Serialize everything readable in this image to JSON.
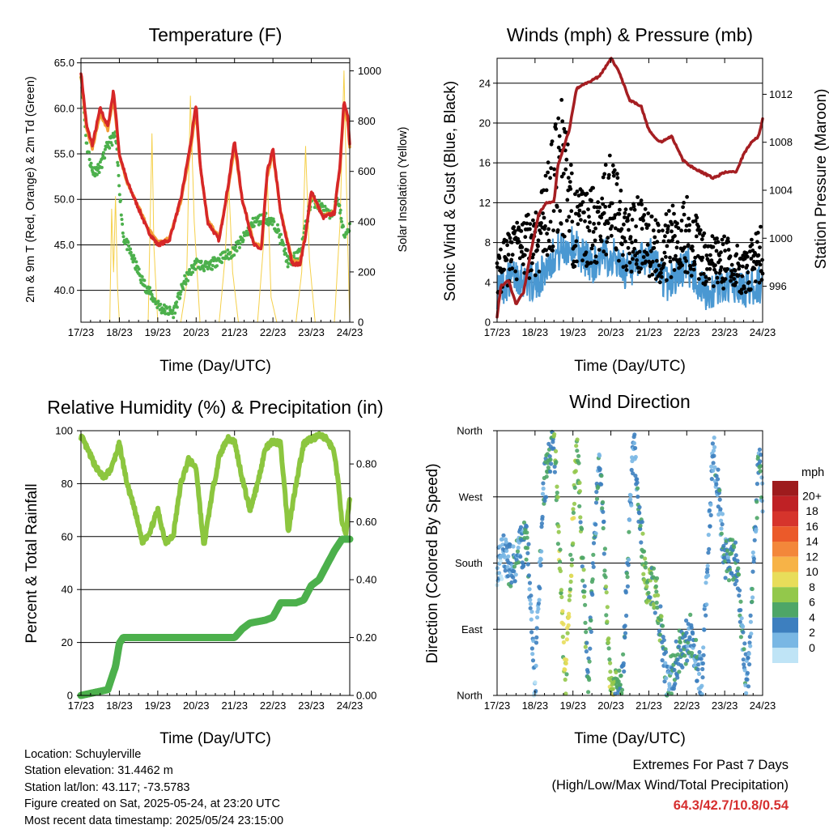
{
  "panels": {
    "temperature": {
      "title": "Temperature (F)",
      "ylabel_left": "2m & 9m T (Red, Orange) & 2m Td (Green)",
      "ylabel_right": "Solar Insolation (Yellow)",
      "xlabel": "Time (Day/UTC)"
    },
    "winds": {
      "title": "Winds (mph) & Pressure (mb)",
      "ylabel_left": "Sonic Wind & Gust (Blue, Black)",
      "ylabel_right": "Station Pressure (Maroon)",
      "xlabel": "Time (Day/UTC)"
    },
    "humidity": {
      "title": "Relative Humidity (%) & Precipitation (in)",
      "ylabel_left": "Percent & Total Rainfall",
      "xlabel": "Time (Day/UTC)"
    },
    "direction": {
      "title": "Wind Direction",
      "ylabel_left": "Direction (Colored By Speed)",
      "xlabel": "Time (Day/UTC)",
      "legend_title": "mph"
    }
  },
  "x_ticks": [
    "17/23",
    "18/23",
    "19/23",
    "20/23",
    "21/23",
    "22/23",
    "23/23",
    "24/23"
  ],
  "info": {
    "location": "Location: Schuylerville",
    "elevation": "Station elevation: 31.4462 m",
    "latlon": "Station lat/lon: 43.117; -73.5783",
    "created": "Figure created on Sat, 2025-05-24, at 23:20 UTC",
    "recent": "Most recent data timestamp: 2025/05/24 23:15:00"
  },
  "extremes": {
    "title": "Extremes For Past 7 Days",
    "subtitle": "(High/Low/Max Wind/Total Precipitation)",
    "value": "64.3/42.7/10.8/0.54"
  },
  "colors": {
    "temp_2m": "#d62728",
    "temp_9m": "#f39c34",
    "dewpoint": "#4cb04c",
    "insolation": "#f5d04a",
    "wind": "#4a98d2",
    "gust": "#000000",
    "pressure": "#a51e22",
    "rh": "#8cc63f",
    "precip": "#4cb04c"
  },
  "chart_data": [
    {
      "type": "line",
      "title": "Temperature (F)",
      "xlabel": "Time (Day/UTC)",
      "ylabel": "2m & 9m T (Red, Orange) & 2m Td (Green)",
      "y2label": "Solar Insolation (Yellow)",
      "x": [
        "17/23",
        "18/23",
        "19/23",
        "20/23",
        "21/23",
        "22/23",
        "23/23",
        "24/23"
      ],
      "ylim": [
        36.5,
        65.5
      ],
      "y2lim": [
        0,
        1050
      ],
      "yticks": [
        40.0,
        45.0,
        50.0,
        55.0,
        60.0,
        65.0
      ],
      "y2ticks": [
        0,
        200,
        400,
        600,
        800,
        1000
      ],
      "series": [
        {
          "name": "2m T",
          "axis": "left",
          "x": [
            0,
            0.15,
            0.3,
            0.5,
            0.7,
            0.85,
            1.0,
            1.2,
            1.5,
            1.75,
            2.0,
            2.3,
            2.6,
            2.85,
            3.0,
            3.1,
            3.3,
            3.6,
            3.85,
            4.0,
            4.2,
            4.5,
            4.7,
            4.85,
            5.0,
            5.2,
            5.5,
            5.7,
            5.85,
            6.0,
            6.3,
            6.6,
            6.75,
            6.85,
            6.95,
            7.0
          ],
          "y": [
            64,
            58,
            56,
            60,
            58,
            62,
            55,
            52,
            49,
            46.5,
            45,
            45.5,
            50,
            56,
            60.5,
            54,
            47.5,
            45.5,
            52,
            56.5,
            50,
            45,
            44.5,
            53,
            55.5,
            48.5,
            43,
            42.8,
            46,
            51,
            48,
            48.5,
            54,
            61,
            59,
            56
          ]
        },
        {
          "name": "9m T",
          "axis": "left",
          "x": [
            0,
            0.15,
            0.3,
            0.5,
            0.7,
            0.85,
            1.0,
            1.2,
            1.5,
            1.75,
            2.0,
            2.3,
            2.6,
            2.85,
            3.0,
            3.1,
            3.3,
            3.6,
            3.85,
            4.0,
            4.2,
            4.5,
            4.7,
            4.85,
            5.0,
            5.2,
            5.5,
            5.7,
            5.85,
            6.0,
            6.3,
            6.6,
            6.75,
            6.85,
            6.95,
            7.0
          ],
          "y": [
            63.6,
            57.6,
            55.6,
            59.4,
            57.6,
            61.3,
            54.8,
            51.8,
            49.2,
            46.8,
            45.3,
            45.7,
            49.7,
            55.4,
            59.8,
            53.8,
            47.8,
            45.8,
            51.6,
            55.8,
            50,
            45.3,
            44.8,
            52.5,
            55,
            48.7,
            43.3,
            43.1,
            46.1,
            50.6,
            48.2,
            48.7,
            53.6,
            60.2,
            58.4,
            55.6
          ]
        },
        {
          "name": "2m Td",
          "axis": "left",
          "x": [
            0,
            0.15,
            0.3,
            0.5,
            0.7,
            0.9,
            1.1,
            1.3,
            1.6,
            1.9,
            2.1,
            2.4,
            2.7,
            3.0,
            3.3,
            3.6,
            3.9,
            4.2,
            4.5,
            4.8,
            5.1,
            5.4,
            5.7,
            6.0,
            6.3,
            6.5,
            6.7,
            6.85,
            7.0
          ],
          "y": [
            64,
            56,
            53,
            53.5,
            56,
            57,
            46,
            44,
            41,
            39,
            38,
            37.5,
            41,
            43,
            42.5,
            43.5,
            44,
            45.5,
            47.5,
            48,
            47,
            43,
            44,
            50,
            49,
            48,
            50,
            46,
            47
          ]
        },
        {
          "name": "Solar Insolation",
          "axis": "right",
          "x": [
            0.75,
            0.8,
            0.85,
            0.9,
            0.95,
            1.0,
            1.05,
            1.1,
            1.2,
            1.35,
            1.5,
            1.6,
            1.75,
            1.85,
            1.9,
            2.0,
            2.2,
            2.4,
            2.6,
            2.75,
            2.85,
            2.95,
            3.1,
            3.3,
            3.6,
            3.75,
            3.85,
            3.95,
            4.1,
            4.3,
            4.6,
            4.75,
            4.85,
            4.95,
            5.1,
            5.3,
            5.6,
            5.75,
            5.85,
            5.95,
            6.1,
            6.3,
            6.6,
            6.75,
            6.85,
            6.95,
            7.0
          ],
          "y": [
            0,
            450,
            200,
            500,
            150,
            0,
            0,
            0,
            0,
            0,
            0,
            0,
            0,
            750,
            300,
            0,
            0,
            0,
            0,
            150,
            900,
            400,
            0,
            0,
            0,
            250,
            550,
            200,
            0,
            0,
            0,
            300,
            600,
            100,
            0,
            0,
            0,
            200,
            700,
            250,
            0,
            0,
            0,
            400,
            1000,
            300,
            0
          ]
        }
      ]
    },
    {
      "type": "scatter",
      "title": "Winds (mph) & Pressure (mb)",
      "xlabel": "Time (Day/UTC)",
      "ylabel": "Sonic Wind & Gust (Blue, Black)",
      "y2label": "Station Pressure (Maroon)",
      "x": [
        "17/23",
        "18/23",
        "19/23",
        "20/23",
        "21/23",
        "22/23",
        "23/23",
        "24/23"
      ],
      "ylim": [
        0,
        26.5
      ],
      "y2lim": [
        993.0,
        1015.0
      ],
      "yticks": [
        0,
        4,
        8,
        12,
        16,
        20,
        24
      ],
      "y2ticks": [
        996,
        1000,
        1004,
        1008,
        1012
      ],
      "series": [
        {
          "name": "Sonic Wind",
          "axis": "left",
          "x": [
            0,
            0.5,
            1.0,
            1.5,
            2.0,
            2.5,
            3.0,
            3.5,
            4.0,
            4.5,
            5.0,
            5.5,
            6.0,
            6.5,
            7.0
          ],
          "y": [
            2.5,
            4,
            3,
            6,
            7,
            5,
            6,
            4,
            6,
            3,
            5,
            2,
            3,
            2.5,
            3
          ]
        },
        {
          "name": "Gust",
          "axis": "left",
          "x": [
            0,
            0.5,
            1.0,
            1.3,
            1.7,
            2.0,
            2.3,
            2.6,
            3.0,
            3.4,
            3.8,
            4.2,
            4.6,
            5.0,
            5.5,
            6.0,
            6.5,
            7.0
          ],
          "y": [
            5,
            7,
            8,
            11,
            16,
            10,
            9,
            10,
            12,
            8,
            9,
            7,
            8,
            9,
            6,
            6,
            5,
            7
          ]
        },
        {
          "name": "Station Pressure",
          "axis": "right",
          "x": [
            0,
            0.1,
            0.3,
            0.5,
            0.7,
            0.9,
            1.1,
            1.3,
            1.5,
            1.6,
            1.9,
            2.1,
            2.4,
            2.7,
            3.0,
            3.2,
            3.5,
            3.8,
            4.0,
            4.3,
            4.6,
            4.9,
            5.1,
            5.4,
            5.7,
            6.0,
            6.3,
            6.5,
            6.7,
            6.9,
            7.0
          ],
          "y": [
            993.5,
            996,
            996.5,
            994.5,
            995.5,
            999,
            1002,
            1003,
            1003,
            1006,
            1009,
            1012.5,
            1013,
            1013.5,
            1015,
            1014,
            1011.5,
            1011,
            1009,
            1008,
            1008.5,
            1006.5,
            1006,
            1005.5,
            1005,
            1005.5,
            1005.5,
            1007,
            1008,
            1008.5,
            1010
          ]
        }
      ]
    },
    {
      "type": "line",
      "title": "Relative Humidity (%) & Precipitation (in)",
      "xlabel": "Time (Day/UTC)",
      "ylabel": "Percent & Total Rainfall",
      "x": [
        "17/23",
        "18/23",
        "19/23",
        "20/23",
        "21/23",
        "22/23",
        "23/23",
        "24/23"
      ],
      "ylim": [
        0,
        100
      ],
      "y2lim": [
        0,
        0.915
      ],
      "yticks": [
        0,
        20,
        40,
        60,
        80,
        100
      ],
      "y2ticks": [
        0.0,
        0.2,
        0.4,
        0.6,
        0.8
      ],
      "series": [
        {
          "name": "Relative Humidity",
          "axis": "left",
          "x": [
            0,
            0.2,
            0.4,
            0.6,
            0.8,
            1.0,
            1.2,
            1.4,
            1.6,
            1.8,
            2.0,
            2.2,
            2.4,
            2.6,
            2.8,
            3.0,
            3.2,
            3.4,
            3.6,
            3.8,
            4.0,
            4.2,
            4.4,
            4.6,
            4.8,
            5.0,
            5.2,
            5.4,
            5.6,
            5.8,
            6.0,
            6.2,
            6.4,
            6.6,
            6.7,
            6.8,
            6.9,
            7.0
          ],
          "y": [
            98,
            92,
            86,
            82,
            86,
            95,
            80,
            70,
            58,
            62,
            70,
            58,
            60,
            80,
            89,
            86,
            56,
            75,
            90,
            97,
            96,
            82,
            70,
            80,
            93,
            96,
            95,
            62,
            80,
            95,
            97,
            98,
            97,
            92,
            80,
            66,
            60,
            75
          ]
        },
        {
          "name": "Total Precipitation",
          "axis": "right",
          "x": [
            0,
            0.7,
            0.9,
            1.0,
            1.1,
            1.2,
            1.5,
            2.0,
            2.5,
            3.0,
            3.5,
            4.0,
            4.2,
            4.4,
            4.8,
            5.0,
            5.2,
            5.6,
            5.8,
            6.0,
            6.2,
            6.4,
            6.6,
            6.8,
            7.0
          ],
          "y": [
            0,
            0.02,
            0.1,
            0.18,
            0.2,
            0.2,
            0.2,
            0.2,
            0.2,
            0.2,
            0.2,
            0.2,
            0.23,
            0.25,
            0.26,
            0.27,
            0.32,
            0.32,
            0.33,
            0.38,
            0.4,
            0.45,
            0.5,
            0.54,
            0.54
          ]
        }
      ]
    },
    {
      "type": "scatter",
      "title": "Wind Direction",
      "xlabel": "Time (Day/UTC)",
      "ylabel": "Direction (Colored By Speed)",
      "x": [
        "17/23",
        "18/23",
        "19/23",
        "20/23",
        "21/23",
        "22/23",
        "23/23",
        "24/23"
      ],
      "ylim": [
        0,
        360
      ],
      "ytick_labels": [
        "North",
        "East",
        "South",
        "West",
        "North"
      ],
      "colorbar": {
        "title": "mph",
        "labels": [
          "20+",
          "18",
          "16",
          "14",
          "12",
          "10",
          "8",
          "6",
          "4",
          "2",
          "0"
        ],
        "colors": [
          "#9e1b1d",
          "#bf2125",
          "#d6342c",
          "#eb5a2a",
          "#f3873a",
          "#f7b347",
          "#e8dd5a",
          "#93c84b",
          "#4ea667",
          "#3d7fbf",
          "#79b7e4",
          "#bfe4f6"
        ]
      },
      "series": [
        {
          "name": "Direction",
          "x": [
            0,
            0.2,
            0.4,
            0.6,
            0.8,
            1.0,
            1.2,
            1.5,
            1.8,
            2.1,
            2.4,
            2.7,
            3.0,
            3.3,
            3.6,
            3.9,
            4.2,
            4.5,
            4.8,
            5.1,
            5.4,
            5.7,
            6.0,
            6.3,
            6.6,
            6.9,
            7.0
          ],
          "y": [
            180,
            190,
            170,
            200,
            210,
            0,
            270,
            360,
            10,
            350,
            20,
            340,
            0,
            10,
            350,
            160,
            140,
            10,
            60,
            80,
            20,
            340,
            190,
            180,
            10,
            320,
            280
          ],
          "speed": [
            2,
            3,
            4,
            3,
            5,
            2,
            4,
            6,
            9,
            7,
            5,
            4,
            8,
            5,
            3,
            7,
            6,
            4,
            5,
            4,
            3,
            3,
            4,
            5,
            3,
            4,
            3
          ]
        }
      ]
    }
  ]
}
